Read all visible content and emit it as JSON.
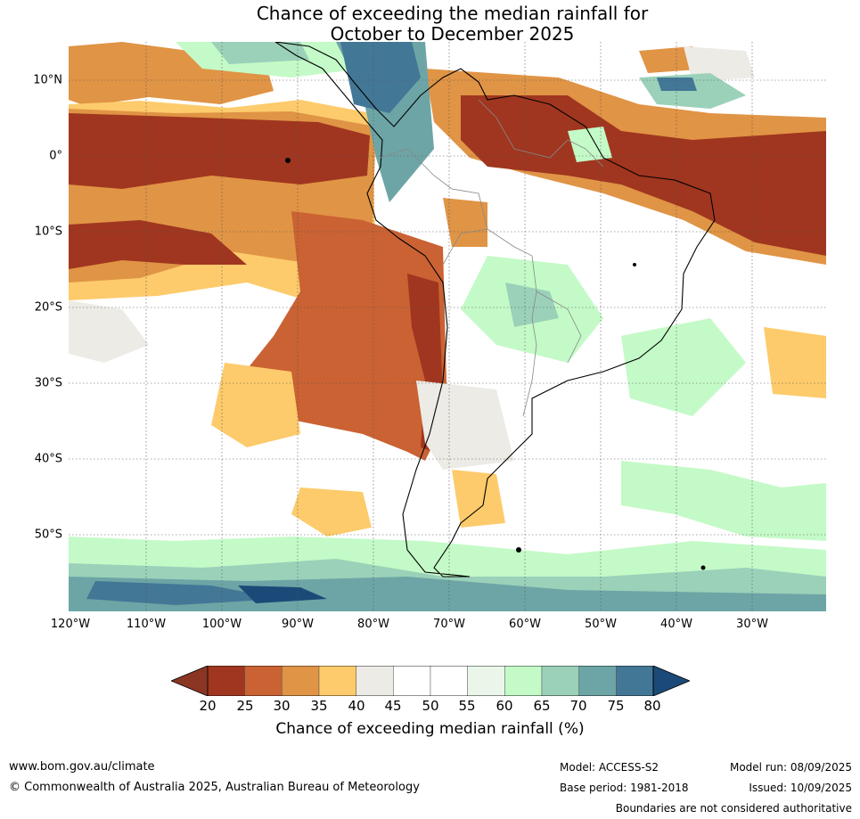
{
  "title": {
    "line1": "Chance of exceeding the median rainfall for",
    "line2": "October to December 2025"
  },
  "map": {
    "lat_labels": [
      "10°N",
      "0°",
      "10°S",
      "20°S",
      "30°S",
      "40°S",
      "50°S"
    ],
    "lon_labels": [
      "120°W",
      "110°W",
      "100°W",
      "90°W",
      "80°W",
      "70°W",
      "60°W",
      "50°W",
      "40°W",
      "30°W"
    ]
  },
  "colorbar": {
    "ticks": [
      "20",
      "25",
      "30",
      "35",
      "40",
      "45",
      "50",
      "55",
      "60",
      "65",
      "70",
      "75",
      "80"
    ],
    "colors": [
      "#a0361f",
      "#ca6233",
      "#e09445",
      "#fdcb6b",
      "#edebe6",
      "#ffffff",
      "#ffffff",
      "#eaf6ea",
      "#c4fac7",
      "#9bd1b9",
      "#6da5a6",
      "#437796"
    ],
    "under_color": "#8b3523",
    "over_color": "#1c4a78",
    "caption": "Chance of exceeding median rainfall (%)"
  },
  "footer": {
    "website": "www.bom.gov.au/climate",
    "copyright": "© Commonwealth of Australia 2025, Australian Bureau of Meteorology",
    "model": "Model: ACCESS-S2",
    "base_period": "Base period: 1981-2018",
    "model_run": "Model run: 08/09/2025",
    "issued": "Issued: 10/09/2025",
    "disclaimer": "Boundaries are not considered authoritative"
  }
}
